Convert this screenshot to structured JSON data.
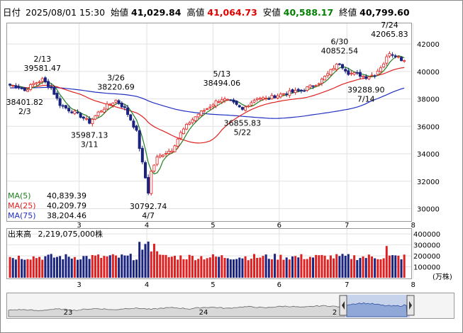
{
  "header": {
    "date_label": "日付",
    "date": "2025/08/01 15:30",
    "open_label": "始値",
    "open": "41,029.84",
    "high_label": "高値",
    "high": "41,064.73",
    "low_label": "安値",
    "low": "40,588.17",
    "close_label": "終値",
    "close": "40,799.60"
  },
  "legend": {
    "ma5": "MA(5)",
    "ma5_value": "40,839.39",
    "ma25": "MA(25)",
    "ma25_value": "40,209.79",
    "ma75": "MA(75)",
    "ma75_value": "38,204.46"
  },
  "volume_panel": {
    "label": "出来高",
    "value": "2,219,075,000株",
    "unit": "(万株)"
  },
  "colors": {
    "up": "#e02020",
    "down": "#1a237e",
    "ma5": "#208020",
    "ma25": "#e02020",
    "ma75": "#2030c0",
    "header_high": "#e00000",
    "header_low": "#008000"
  },
  "chart_data": {
    "type": "candlestick",
    "price_ticks": [
      "42000",
      "40000",
      "38000",
      "36000",
      "34000",
      "32000",
      "30000"
    ],
    "price_tick_values": [
      42000,
      40000,
      38000,
      36000,
      34000,
      32000,
      30000
    ],
    "price_range": [
      29200,
      43400
    ],
    "volume_ticks": [
      "400000",
      "300000",
      "200000",
      "100000"
    ],
    "volume_tick_values": [
      400000,
      300000,
      200000,
      100000
    ],
    "volume_range": [
      0,
      440000
    ],
    "month_labels": [
      "3",
      "4",
      "5",
      "6",
      "7",
      "8"
    ],
    "month_positions": [
      23.5,
      46.5,
      69,
      91.5,
      114.5,
      137
    ],
    "navigator_labels": [
      "23",
      "24",
      "2"
    ],
    "annotations": [
      {
        "date": "2/13",
        "value": "39581.47",
        "idx": 11,
        "price": 39581.47
      },
      {
        "date": "2/3",
        "value": "38401.82",
        "idx": 5,
        "price": 38401.82
      },
      {
        "date": "3/11",
        "value": "35987.13",
        "idx": 27,
        "price": 35987.13
      },
      {
        "date": "3/26",
        "value": "38220.69",
        "idx": 36,
        "price": 38220.69
      },
      {
        "date": "4/7",
        "value": "30792.74",
        "idx": 47,
        "price": 30792.74
      },
      {
        "date": "5/13",
        "value": "38494.06",
        "idx": 72,
        "price": 38494.06
      },
      {
        "date": "5/22",
        "value": "36855.83",
        "idx": 79,
        "price": 36855.83
      },
      {
        "date": "6/30",
        "value": "40852.54",
        "idx": 112,
        "price": 40852.54
      },
      {
        "date": "7/14",
        "value": "39288.90",
        "idx": 121,
        "price": 39288.9
      },
      {
        "date": "7/24",
        "value": "42065.83",
        "idx": 129,
        "price": 42065.83
      }
    ],
    "anchors": [
      [
        0,
        39000
      ],
      [
        3,
        38900
      ],
      [
        5,
        38600
      ],
      [
        8,
        39100
      ],
      [
        11,
        39400
      ],
      [
        14,
        38800
      ],
      [
        17,
        37600
      ],
      [
        20,
        37200
      ],
      [
        23,
        36900
      ],
      [
        25,
        36600
      ],
      [
        27,
        36300
      ],
      [
        30,
        37000
      ],
      [
        33,
        37500
      ],
      [
        36,
        37900
      ],
      [
        39,
        37300
      ],
      [
        41,
        36500
      ],
      [
        43,
        35600
      ],
      [
        45,
        33300
      ],
      [
        47,
        31200
      ],
      [
        48,
        32700
      ],
      [
        50,
        33700
      ],
      [
        52,
        34000
      ],
      [
        55,
        34300
      ],
      [
        58,
        35500
      ],
      [
        61,
        36300
      ],
      [
        64,
        36900
      ],
      [
        67,
        37300
      ],
      [
        70,
        37800
      ],
      [
        72,
        38000
      ],
      [
        75,
        37800
      ],
      [
        77,
        37500
      ],
      [
        79,
        37200
      ],
      [
        81,
        37600
      ],
      [
        84,
        38100
      ],
      [
        87,
        38000
      ],
      [
        90,
        38200
      ],
      [
        93,
        38400
      ],
      [
        96,
        38500
      ],
      [
        99,
        38600
      ],
      [
        102,
        38900
      ],
      [
        105,
        39200
      ],
      [
        108,
        39800
      ],
      [
        110,
        40300
      ],
      [
        112,
        40600
      ],
      [
        115,
        39900
      ],
      [
        118,
        39800
      ],
      [
        121,
        39600
      ],
      [
        124,
        39800
      ],
      [
        127,
        40600
      ],
      [
        129,
        41400
      ],
      [
        131,
        41200
      ],
      [
        133,
        40900
      ],
      [
        134,
        40799.6
      ]
    ]
  }
}
